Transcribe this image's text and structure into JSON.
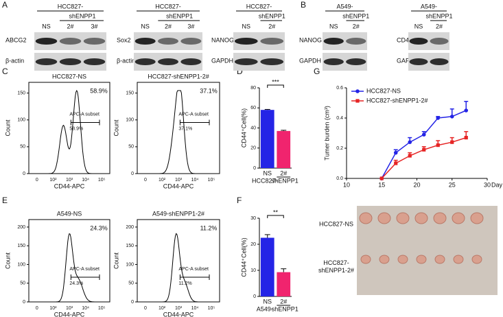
{
  "panel_labels": [
    "A",
    "B",
    "C",
    "D",
    "E",
    "F",
    "G"
  ],
  "blots": [
    {
      "group": "HCC827-",
      "sub": "shENPP1",
      "lanes": [
        "NS",
        "2#",
        "3#"
      ],
      "rows": [
        "ABCG2",
        "β-actin"
      ]
    },
    {
      "group": "HCC827-",
      "sub": "shENPP1",
      "lanes": [
        "NS",
        "2#",
        "3#"
      ],
      "rows": [
        "Sox2",
        "β-actin"
      ]
    },
    {
      "group": "HCC827-",
      "sub": "shENPP1",
      "lanes": [
        "NS",
        "2#"
      ],
      "rows": [
        "NANOG",
        "GAPDH"
      ]
    },
    {
      "group": "A549-",
      "sub": "shENPP1",
      "lanes": [
        "NS",
        "2#"
      ],
      "rows": [
        "NANOG",
        "GAPDH"
      ]
    },
    {
      "group": "A549-",
      "sub": "shENPP1",
      "lanes": [
        "NS",
        "2#"
      ],
      "rows": [
        "CD44",
        "GAPDH"
      ]
    }
  ],
  "flow": {
    "x_label": "CD44-APC",
    "y_label": "Count",
    "xtick_labels": [
      "0",
      "10²",
      "10³",
      "10⁴",
      "10⁵"
    ],
    "panels": [
      {
        "title": "HCC827-NS",
        "percent": "58.9%",
        "gate_label": "APC-A subset",
        "gate_percent": "58.9%",
        "ylim": [
          0,
          170
        ],
        "yticks": [
          0,
          50,
          100,
          150
        ]
      },
      {
        "title": "HCC827-shENPP1-2#",
        "percent": "37.1%",
        "gate_label": "APC-A subset",
        "gate_percent": "37.1%",
        "ylim": [
          0,
          170
        ],
        "yticks": [
          0,
          50,
          100,
          150
        ]
      },
      {
        "title": "A549-NS",
        "percent": "24.3%",
        "gate_label": "APC-A subset",
        "gate_percent": "24.3%",
        "ylim": [
          0,
          220
        ],
        "yticks": [
          0,
          50,
          100,
          150,
          200
        ]
      },
      {
        "title": "A549-shENPP1-2#",
        "percent": "11.2%",
        "gate_label": "APC-A subset",
        "gate_percent": "11.2%",
        "ylim": [
          0,
          220
        ],
        "yticks": [
          0,
          50,
          100,
          150,
          200
        ]
      }
    ]
  },
  "chart_data": [
    {
      "type": "bar",
      "y_label": "CD44⁺Cell(%)",
      "categories": [
        "NS",
        "2#"
      ],
      "group_labels": [
        "HCC827-",
        "shENPP1"
      ],
      "values": [
        58,
        37
      ],
      "errors": [
        0.5,
        0.7
      ],
      "colors": [
        "#2424e6",
        "#f0246e"
      ],
      "ylim": [
        0,
        80
      ],
      "yticks": [
        0,
        20,
        40,
        60,
        80
      ],
      "significance": "***"
    },
    {
      "type": "bar",
      "y_label": "CD44⁺Cell(%)",
      "categories": [
        "NS",
        "2#"
      ],
      "group_labels": [
        "A549-",
        "shENPP1"
      ],
      "values": [
        22.5,
        9.3
      ],
      "errors": [
        1.2,
        1.3
      ],
      "colors": [
        "#2424e6",
        "#f0246e"
      ],
      "ylim": [
        0,
        30
      ],
      "yticks": [
        0,
        10,
        20,
        30
      ],
      "significance": "**"
    },
    {
      "type": "line",
      "y_label": "Tumer burden (cm³)",
      "x_label": "Day",
      "x": [
        15,
        17,
        19,
        21,
        23,
        25,
        27
      ],
      "series": [
        {
          "name": "HCC827-NS",
          "color": "#2424e6",
          "values": [
            0,
            0.17,
            0.24,
            0.29,
            0.4,
            0.41,
            0.45
          ],
          "errors": [
            0,
            0.02,
            0.03,
            0.02,
            0.01,
            0.05,
            0.06
          ]
        },
        {
          "name": "HCC827-shENPP1-2#",
          "color": "#e62424",
          "values": [
            0,
            0.1,
            0.15,
            0.19,
            0.22,
            0.24,
            0.27
          ],
          "errors": [
            0,
            0.02,
            0.02,
            0.02,
            0.03,
            0.03,
            0.04
          ]
        }
      ],
      "xlim": [
        10,
        30
      ],
      "xticks": [
        10,
        15,
        20,
        25,
        30
      ],
      "ylim": [
        0,
        0.6
      ],
      "yticks": [
        {
          "value": 0,
          "label": "0.0"
        },
        0.2,
        0.4,
        0.6
      ]
    }
  ],
  "tumor": {
    "rows": [
      "HCC827-NS",
      "HCC827-\nshENPP1-2#"
    ]
  }
}
